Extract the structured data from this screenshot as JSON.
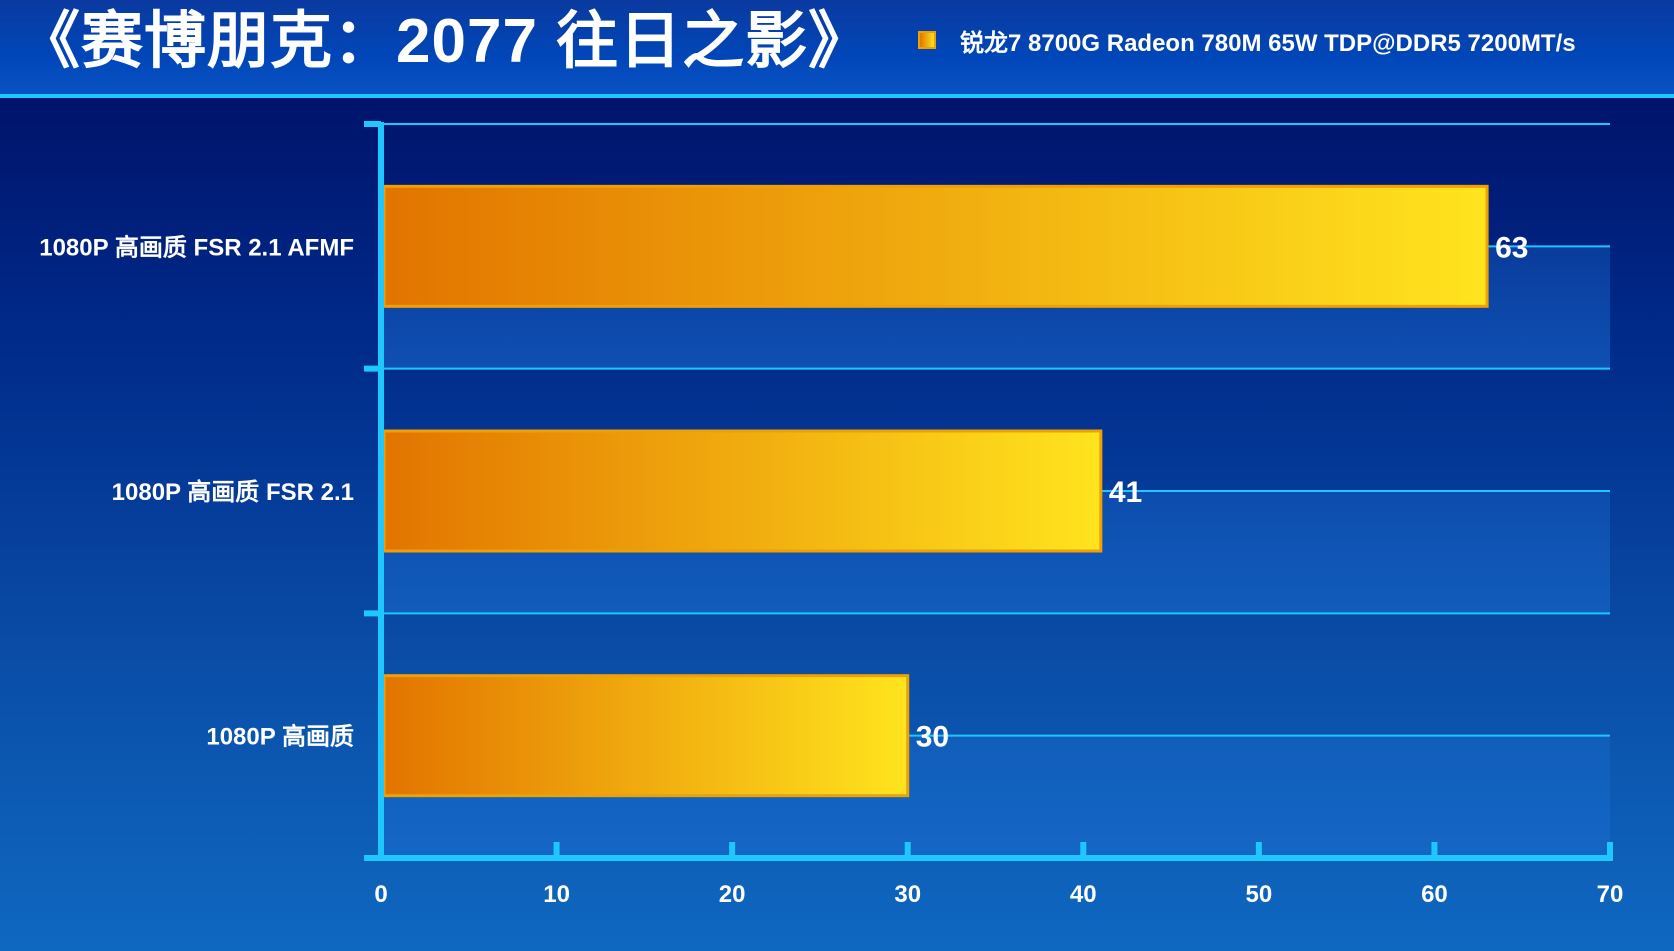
{
  "header": {
    "title": "《赛博朋克：2077 往日之影》"
  },
  "legend": {
    "label": "锐龙7 8700G Radeon 780M 65W TDP@DDR5 7200MT/s"
  },
  "colors": {
    "bar_start": "#e27400",
    "bar_end": "#ffe41e",
    "bar_border": "#f0a000",
    "axis": "#1ec8ff",
    "gridline": "#1ec8ff",
    "label": "#ffffff"
  },
  "chart_data": {
    "type": "bar",
    "orientation": "horizontal",
    "title": "《赛博朋克：2077 往日之影》",
    "categories": [
      "1080P 高画质 FSR 2.1 AFMF",
      "1080P 高画质 FSR 2.1",
      "1080P 高画质"
    ],
    "series": [
      {
        "name": "锐龙7 8700G Radeon 780M 65W TDP@DDR5 7200MT/s",
        "values": [
          63,
          41,
          30
        ]
      }
    ],
    "xlim": [
      0,
      70
    ],
    "xticks": [
      0,
      10,
      20,
      30,
      40,
      50,
      60,
      70
    ],
    "xlabel": "",
    "ylabel": "",
    "legend_position": "top-right",
    "data_labels": true
  }
}
